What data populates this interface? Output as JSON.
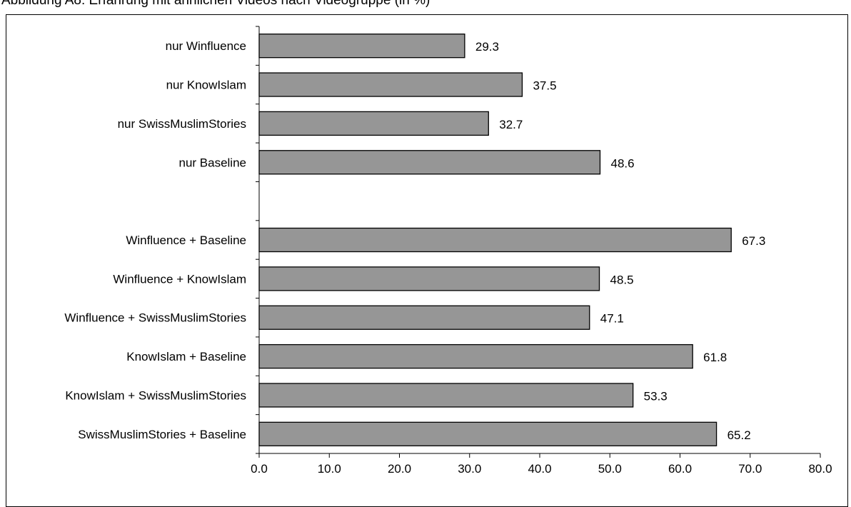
{
  "title": "Abbildung A8: Erfahrung mit ähnlichen Videos nach Videogruppe (in %)",
  "chart_data": {
    "type": "bar",
    "orientation": "horizontal",
    "title": "Abbildung A8: Erfahrung mit ähnlichen Videos nach Videogruppe (in %)",
    "xlabel": "",
    "ylabel": "",
    "xlim": [
      0,
      80
    ],
    "x_ticks": [
      "0.0",
      "10.0",
      "20.0",
      "30.0",
      "40.0",
      "50.0",
      "60.0",
      "70.0",
      "80.0"
    ],
    "grid": false,
    "legend": "none",
    "bar_color": "#969696",
    "categories": [
      "nur Winfluence",
      "nur KnowIslam",
      "nur SwissMuslimStories",
      "nur Baseline",
      "",
      "Winfluence + Baseline",
      "Winfluence + KnowIslam",
      "Winfluence + SwissMuslimStories",
      "KnowIslam + Baseline",
      "KnowIslam + SwissMuslimStories",
      "SwissMuslimStories + Baseline"
    ],
    "values": [
      29.3,
      37.5,
      32.7,
      48.6,
      null,
      67.3,
      48.5,
      47.1,
      61.8,
      53.3,
      65.2
    ],
    "value_labels": [
      "29.3",
      "37.5",
      "32.7",
      "48.6",
      "",
      "67.3",
      "48.5",
      "47.1",
      "61.8",
      "53.3",
      "65.2"
    ]
  }
}
